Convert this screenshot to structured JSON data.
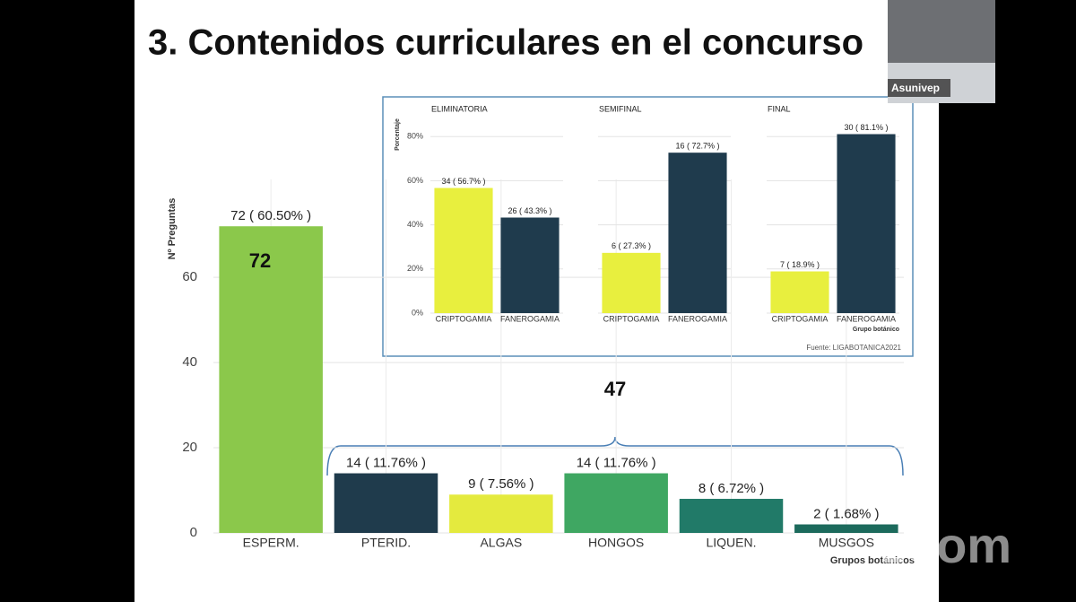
{
  "slide_title": "3. Contenidos curriculares en el concurso",
  "webcam_label": "Asunivep",
  "watermark": "zoom",
  "source": "Fuente: LIGABOTANICA2021",
  "chart_data": [
    {
      "type": "bar",
      "ylabel": "Nº Preguntas",
      "xlabel": "Grupos botánicos",
      "categories": [
        "ESPERM.",
        "PTERID.",
        "ALGAS",
        "HONGOS",
        "LIQUEN.",
        "MUSGOS"
      ],
      "values": [
        72,
        14,
        9,
        14,
        8,
        2
      ],
      "value_labels": [
        "72 ( 60.50% )",
        "14 ( 11.76% )",
        "9 ( 7.56% )",
        "14 ( 11.76% )",
        "8 ( 6.72% )",
        "2 ( 1.68% )"
      ],
      "colors": [
        "#8bc84b",
        "#1f3b4c",
        "#e4ea3e",
        "#3fa762",
        "#217a68",
        "#1c6a5c"
      ],
      "ylim": [
        0,
        83
      ],
      "yticks": [
        0,
        20,
        40,
        60
      ],
      "grid": true,
      "annotations": [
        "72",
        "47"
      ]
    },
    {
      "type": "bar",
      "title": "ELIMINATORIA",
      "ylabel": "Porcentaje",
      "categories": [
        "CRIPTOGAMIA",
        "FANEROGAMIA"
      ],
      "values": [
        56.7,
        43.3
      ],
      "value_labels": [
        "34 ( 56.7% )",
        "26 ( 43.3% )"
      ],
      "colors": [
        "#e8ef3e",
        "#1f3b4d"
      ],
      "ylim": [
        0,
        87
      ],
      "yticks": [
        {
          "value": 0,
          "label": "0%"
        },
        {
          "value": 20,
          "label": "20%"
        },
        {
          "value": 40,
          "label": "40%"
        },
        {
          "value": 60,
          "label": "60%"
        },
        {
          "value": 80,
          "label": "80%"
        }
      ],
      "grid": true
    },
    {
      "type": "bar",
      "title": "SEMIFINAL",
      "categories": [
        "CRIPTOGAMIA",
        "FANEROGAMIA"
      ],
      "values": [
        27.3,
        72.7
      ],
      "value_labels": [
        "6 ( 27.3% )",
        "16 ( 72.7% )"
      ],
      "colors": [
        "#e8ef3e",
        "#1f3b4d"
      ],
      "ylim": [
        0,
        87
      ],
      "grid": true
    },
    {
      "type": "bar",
      "title": "FINAL",
      "xlabel": "Grupo botánico",
      "categories": [
        "CRIPTOGAMIA",
        "FANEROGAMIA"
      ],
      "values": [
        18.9,
        81.1
      ],
      "value_labels": [
        "7 ( 18.9% )",
        "30 ( 81.1% )"
      ],
      "colors": [
        "#e8ef3e",
        "#1f3b4d"
      ],
      "ylim": [
        0,
        87
      ],
      "grid": true
    }
  ]
}
